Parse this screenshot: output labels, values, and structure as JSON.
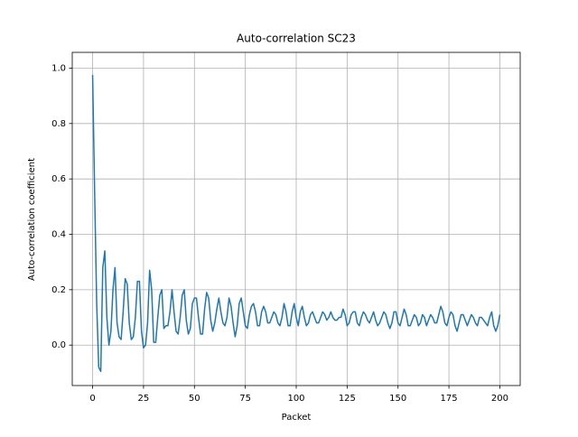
{
  "chart_data": {
    "type": "line",
    "title": "Auto-correlation SC23",
    "xlabel": "Packet",
    "ylabel": "Auto-correlation coefficient",
    "color": "#1f77b4",
    "grid": true,
    "xlim": [
      -10,
      210
    ],
    "ylim": [
      -0.146,
      1.057
    ],
    "xticks": [
      0,
      25,
      50,
      75,
      100,
      125,
      150,
      175,
      200
    ],
    "yticks": [
      {
        "value": 0,
        "label": "0.0"
      },
      0.2,
      0.4,
      0.6,
      0.8,
      {
        "value": 1,
        "label": "1.0"
      }
    ],
    "x": [
      0,
      1,
      2,
      3,
      4,
      5,
      6,
      7,
      8,
      9,
      10,
      11,
      12,
      13,
      14,
      15,
      16,
      17,
      18,
      19,
      20,
      21,
      22,
      23,
      24,
      25,
      26,
      27,
      28,
      29,
      30,
      31,
      32,
      33,
      34,
      35,
      36,
      37,
      38,
      39,
      40,
      41,
      42,
      43,
      44,
      45,
      46,
      47,
      48,
      49,
      50,
      51,
      52,
      53,
      54,
      55,
      56,
      57,
      58,
      59,
      60,
      61,
      62,
      63,
      64,
      65,
      66,
      67,
      68,
      69,
      70,
      71,
      72,
      73,
      74,
      75,
      76,
      77,
      78,
      79,
      80,
      81,
      82,
      83,
      84,
      85,
      86,
      87,
      88,
      89,
      90,
      91,
      92,
      93,
      94,
      95,
      96,
      97,
      98,
      99,
      100,
      101,
      102,
      103,
      104,
      105,
      106,
      107,
      108,
      109,
      110,
      111,
      112,
      113,
      114,
      115,
      116,
      117,
      118,
      119,
      120,
      121,
      122,
      123,
      124,
      125,
      126,
      127,
      128,
      129,
      130,
      131,
      132,
      133,
      134,
      135,
      136,
      137,
      138,
      139,
      140,
      141,
      142,
      143,
      144,
      145,
      146,
      147,
      148,
      149,
      150,
      151,
      152,
      153,
      154,
      155,
      156,
      157,
      158,
      159,
      160,
      161,
      162,
      163,
      164,
      165,
      166,
      167,
      168,
      169,
      170,
      171,
      172,
      173,
      174,
      175,
      176,
      177,
      178,
      179,
      180,
      181,
      182,
      183,
      184,
      185,
      186,
      187,
      188,
      189,
      190,
      191,
      192,
      193,
      194,
      195,
      196,
      197,
      198,
      199,
      200
    ],
    "values": [
      0.975,
      0.55,
      0.15,
      -0.08,
      -0.095,
      0.28,
      0.34,
      0.1,
      0.0,
      0.05,
      0.2,
      0.28,
      0.08,
      0.03,
      0.02,
      0.12,
      0.24,
      0.22,
      0.08,
      0.02,
      0.03,
      0.1,
      0.23,
      0.23,
      0.05,
      -0.01,
      0.0,
      0.08,
      0.27,
      0.2,
      0.01,
      0.01,
      0.1,
      0.18,
      0.2,
      0.06,
      0.07,
      0.07,
      0.12,
      0.2,
      0.12,
      0.05,
      0.04,
      0.1,
      0.18,
      0.2,
      0.09,
      0.04,
      0.06,
      0.15,
      0.17,
      0.17,
      0.1,
      0.04,
      0.04,
      0.13,
      0.19,
      0.17,
      0.09,
      0.05,
      0.08,
      0.13,
      0.17,
      0.12,
      0.08,
      0.07,
      0.1,
      0.17,
      0.14,
      0.08,
      0.03,
      0.07,
      0.15,
      0.17,
      0.12,
      0.07,
      0.06,
      0.11,
      0.14,
      0.15,
      0.12,
      0.07,
      0.07,
      0.12,
      0.14,
      0.12,
      0.08,
      0.08,
      0.1,
      0.12,
      0.11,
      0.08,
      0.07,
      0.1,
      0.15,
      0.12,
      0.07,
      0.07,
      0.12,
      0.15,
      0.1,
      0.07,
      0.12,
      0.14,
      0.1,
      0.07,
      0.08,
      0.11,
      0.12,
      0.1,
      0.08,
      0.08,
      0.1,
      0.12,
      0.11,
      0.09,
      0.1,
      0.12,
      0.1,
      0.09,
      0.09,
      0.1,
      0.1,
      0.13,
      0.11,
      0.07,
      0.08,
      0.11,
      0.12,
      0.12,
      0.08,
      0.07,
      0.1,
      0.12,
      0.11,
      0.09,
      0.08,
      0.1,
      0.12,
      0.09,
      0.07,
      0.08,
      0.1,
      0.12,
      0.11,
      0.08,
      0.06,
      0.08,
      0.12,
      0.12,
      0.08,
      0.07,
      0.1,
      0.13,
      0.11,
      0.07,
      0.07,
      0.09,
      0.11,
      0.1,
      0.07,
      0.08,
      0.11,
      0.1,
      0.07,
      0.09,
      0.11,
      0.1,
      0.08,
      0.08,
      0.11,
      0.14,
      0.12,
      0.08,
      0.07,
      0.1,
      0.12,
      0.11,
      0.07,
      0.05,
      0.08,
      0.11,
      0.11,
      0.09,
      0.07,
      0.09,
      0.11,
      0.1,
      0.08,
      0.07,
      0.1,
      0.1,
      0.09,
      0.08,
      0.07,
      0.1,
      0.12,
      0.07,
      0.05,
      0.07,
      0.11
    ]
  }
}
